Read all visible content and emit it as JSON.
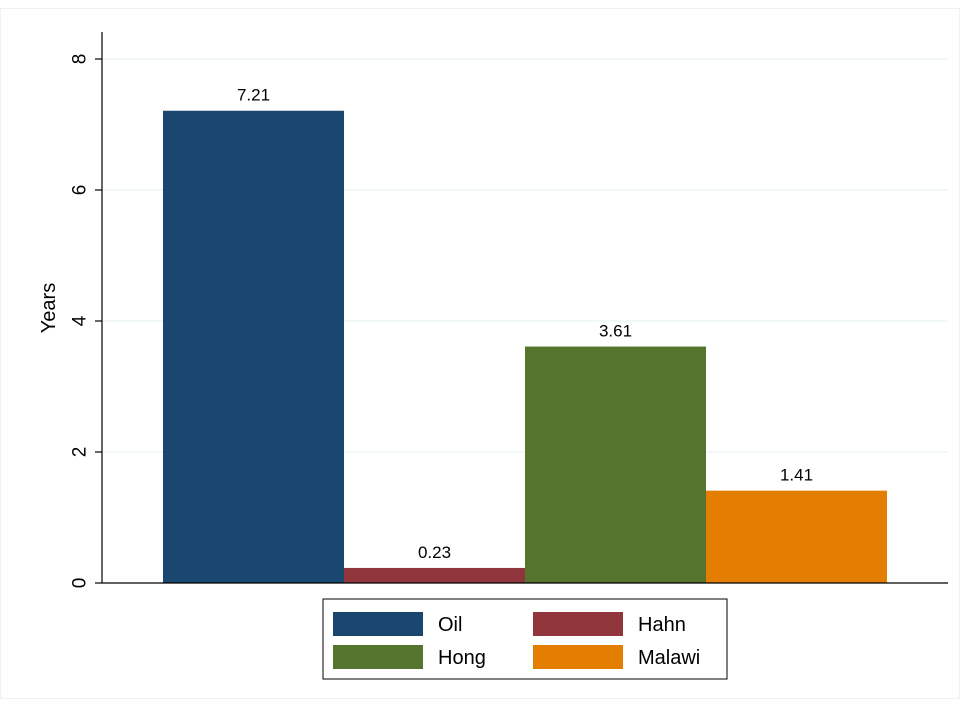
{
  "chart_data": {
    "type": "bar",
    "ylabel": "Years",
    "xlabel": "",
    "ylim": [
      0,
      8
    ],
    "yticks": [
      0,
      2,
      4,
      6,
      8
    ],
    "ytick_labels": [
      "0",
      "2",
      "4",
      "6",
      "8"
    ],
    "grid": true,
    "legend_position": "bottom",
    "series": [
      {
        "name": "Oil",
        "value": 7.21,
        "label": "7.21",
        "color": "#1a476f"
      },
      {
        "name": "Hahn",
        "value": 0.23,
        "label": "0.23",
        "color": "#90353b"
      },
      {
        "name": "Hong",
        "value": 3.61,
        "label": "3.61",
        "color": "#55752f"
      },
      {
        "name": "Malawi",
        "value": 1.41,
        "label": "1.41",
        "color": "#e37e00"
      }
    ]
  }
}
